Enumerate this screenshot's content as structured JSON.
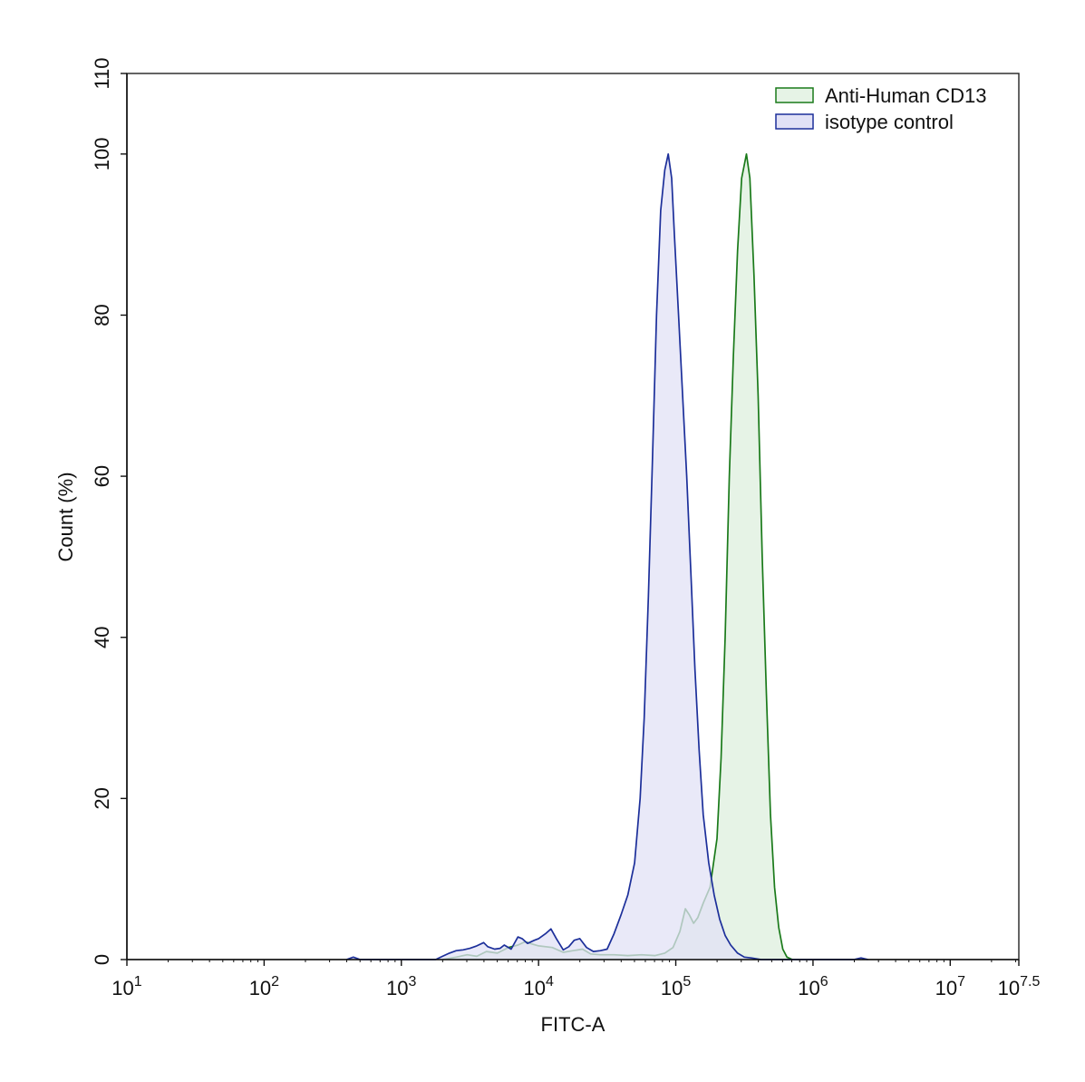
{
  "chart_data": {
    "type": "area",
    "title": "",
    "xlabel": "FITC-A",
    "ylabel": "Count (%)",
    "xscale": "log",
    "xlim_log10": [
      1,
      7.5
    ],
    "ylim": [
      0,
      110
    ],
    "grid": false,
    "legend_position": "top-right",
    "x_ticks": [
      {
        "base": "10",
        "exp": "1",
        "log": 1
      },
      {
        "base": "10",
        "exp": "2",
        "log": 2
      },
      {
        "base": "10",
        "exp": "3",
        "log": 3
      },
      {
        "base": "10",
        "exp": "4",
        "log": 4
      },
      {
        "base": "10",
        "exp": "5",
        "log": 5
      },
      {
        "base": "10",
        "exp": "6",
        "log": 6
      },
      {
        "base": "10",
        "exp": "7",
        "log": 7
      },
      {
        "base": "10",
        "exp": "7.5",
        "log": 7.5
      }
    ],
    "y_ticks": [
      "0",
      "20",
      "40",
      "60",
      "80",
      "100",
      "110"
    ],
    "series": [
      {
        "name": "Anti-Human CD13",
        "stroke": "#1a7a1a",
        "fill": "#e6f3e6",
        "points": [
          [
            3.3,
            0
          ],
          [
            3.4,
            0.3
          ],
          [
            3.48,
            0.6
          ],
          [
            3.55,
            0.4
          ],
          [
            3.62,
            1
          ],
          [
            3.7,
            0.8
          ],
          [
            3.78,
            1.5
          ],
          [
            3.85,
            1.8
          ],
          [
            3.9,
            2.2
          ],
          [
            4.0,
            1.7
          ],
          [
            4.1,
            1.5
          ],
          [
            4.18,
            0.9
          ],
          [
            4.25,
            1.1
          ],
          [
            4.32,
            1.3
          ],
          [
            4.38,
            0.7
          ],
          [
            4.45,
            0.6
          ],
          [
            4.55,
            0.6
          ],
          [
            4.65,
            0.5
          ],
          [
            4.75,
            0.6
          ],
          [
            4.85,
            0.5
          ],
          [
            4.92,
            0.8
          ],
          [
            4.98,
            1.5
          ],
          [
            5.03,
            3.5
          ],
          [
            5.07,
            6.3
          ],
          [
            5.1,
            5.5
          ],
          [
            5.13,
            4.5
          ],
          [
            5.16,
            5.2
          ],
          [
            5.2,
            7
          ],
          [
            5.25,
            9
          ],
          [
            5.3,
            15
          ],
          [
            5.33,
            25
          ],
          [
            5.36,
            40
          ],
          [
            5.39,
            60
          ],
          [
            5.42,
            75
          ],
          [
            5.45,
            88
          ],
          [
            5.48,
            97
          ],
          [
            5.515,
            100
          ],
          [
            5.54,
            97
          ],
          [
            5.57,
            85
          ],
          [
            5.6,
            70
          ],
          [
            5.63,
            50
          ],
          [
            5.66,
            33
          ],
          [
            5.69,
            18
          ],
          [
            5.72,
            9
          ],
          [
            5.75,
            4
          ],
          [
            5.78,
            1.3
          ],
          [
            5.81,
            0.3
          ],
          [
            5.85,
            0
          ]
        ]
      },
      {
        "name": "isotype control",
        "stroke": "#1c2f9a",
        "fill": "#e1e1f6",
        "points": [
          [
            2.6,
            0
          ],
          [
            2.65,
            0.3
          ],
          [
            2.7,
            0
          ],
          [
            3.25,
            0
          ],
          [
            3.3,
            0.4
          ],
          [
            3.35,
            0.8
          ],
          [
            3.4,
            1.1
          ],
          [
            3.45,
            1.2
          ],
          [
            3.5,
            1.4
          ],
          [
            3.55,
            1.7
          ],
          [
            3.6,
            2.1
          ],
          [
            3.63,
            1.6
          ],
          [
            3.68,
            1.3
          ],
          [
            3.72,
            1.4
          ],
          [
            3.75,
            1.8
          ],
          [
            3.8,
            1.3
          ],
          [
            3.85,
            2.8
          ],
          [
            3.88,
            2.6
          ],
          [
            3.92,
            2.0
          ],
          [
            3.97,
            2.4
          ],
          [
            4.0,
            2.6
          ],
          [
            4.05,
            3.2
          ],
          [
            4.09,
            3.8
          ],
          [
            4.13,
            2.6
          ],
          [
            4.18,
            1.2
          ],
          [
            4.22,
            1.6
          ],
          [
            4.26,
            2.4
          ],
          [
            4.3,
            2.6
          ],
          [
            4.35,
            1.5
          ],
          [
            4.4,
            1.0
          ],
          [
            4.45,
            1.1
          ],
          [
            4.5,
            1.3
          ],
          [
            4.55,
            3.2
          ],
          [
            4.6,
            5.5
          ],
          [
            4.65,
            8
          ],
          [
            4.7,
            12
          ],
          [
            4.74,
            20
          ],
          [
            4.77,
            30
          ],
          [
            4.8,
            45
          ],
          [
            4.83,
            62
          ],
          [
            4.86,
            80
          ],
          [
            4.89,
            93
          ],
          [
            4.92,
            98
          ],
          [
            4.945,
            100
          ],
          [
            4.97,
            97
          ],
          [
            4.99,
            90
          ],
          [
            5.02,
            80
          ],
          [
            5.05,
            70
          ],
          [
            5.08,
            60
          ],
          [
            5.11,
            48
          ],
          [
            5.14,
            36
          ],
          [
            5.17,
            26
          ],
          [
            5.2,
            18
          ],
          [
            5.24,
            12
          ],
          [
            5.28,
            8
          ],
          [
            5.32,
            5
          ],
          [
            5.36,
            3
          ],
          [
            5.4,
            1.8
          ],
          [
            5.45,
            0.8
          ],
          [
            5.5,
            0.3
          ],
          [
            5.55,
            0.2
          ],
          [
            5.62,
            0
          ],
          [
            6.3,
            0
          ],
          [
            6.35,
            0.2
          ],
          [
            6.4,
            0
          ]
        ]
      }
    ]
  }
}
